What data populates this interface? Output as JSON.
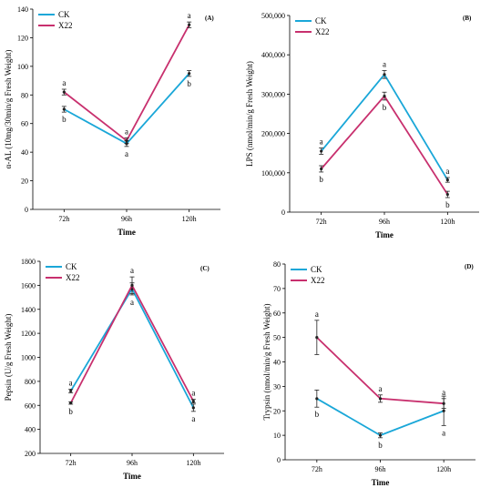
{
  "chart_data": [
    {
      "type": "line",
      "panel": "(A)",
      "categories": [
        "72h",
        "96h",
        "120h"
      ],
      "xlabel": "Time",
      "ylabel": "α-AL (10mg/30min/g Fresh Weight)",
      "ylim": [
        0,
        140
      ],
      "yticks": [
        "0",
        "20",
        "40",
        "60",
        "80",
        "100",
        "120",
        "140"
      ],
      "legend": {
        "position": "top-left",
        "entries": [
          "CK",
          "X22"
        ]
      },
      "series": [
        {
          "name": "CK",
          "color": "#1aa7d8",
          "values": [
            70,
            46,
            95
          ],
          "errors": [
            2,
            2,
            2
          ],
          "letters": [
            "b",
            "a",
            "b"
          ],
          "letter_side": [
            "below",
            "below",
            "below"
          ]
        },
        {
          "name": "X22",
          "color": "#c8306e",
          "values": [
            82,
            48,
            129
          ],
          "errors": [
            2,
            2,
            2
          ],
          "letters": [
            "a",
            "a",
            "a"
          ],
          "letter_side": [
            "above",
            "above",
            "above"
          ]
        }
      ]
    },
    {
      "type": "line",
      "panel": "(B)",
      "categories": [
        "72h",
        "96h",
        "120h"
      ],
      "xlabel": "Time",
      "ylabel": "LPS (nmol/min/g Fresh Weight)",
      "ylim": [
        0,
        500000
      ],
      "yticks": [
        "0",
        "100,000",
        "200,000",
        "300,000",
        "400,000",
        "500,000"
      ],
      "legend": {
        "position": "top-left",
        "entries": [
          "CK",
          "X22"
        ]
      },
      "series": [
        {
          "name": "CK",
          "color": "#1aa7d8",
          "values": [
            155000,
            350000,
            82000
          ],
          "errors": [
            8000,
            10000,
            6000
          ],
          "letters": [
            "a",
            "a",
            "a"
          ],
          "letter_side": [
            "above",
            "above",
            "above"
          ]
        },
        {
          "name": "X22",
          "color": "#c8306e",
          "values": [
            110000,
            295000,
            45000
          ],
          "errors": [
            8000,
            10000,
            8000
          ],
          "letters": [
            "b",
            "b",
            "b"
          ],
          "letter_side": [
            "below",
            "below",
            "below"
          ]
        }
      ]
    },
    {
      "type": "line",
      "panel": "(C)",
      "categories": [
        "72h",
        "96h",
        "120h"
      ],
      "xlabel": "Time",
      "ylabel": "Pepsin (U/g Fresh Weight)",
      "ylim": [
        200,
        1800
      ],
      "yticks": [
        "200",
        "400",
        "600",
        "800",
        "1000",
        "1200",
        "1400",
        "1600",
        "1800"
      ],
      "legend": {
        "position": "top-left",
        "entries": [
          "CK",
          "X22"
        ]
      },
      "series": [
        {
          "name": "CK",
          "color": "#1aa7d8",
          "values": [
            720,
            1570,
            580
          ],
          "errors": [
            15,
            50,
            30
          ],
          "letters": [
            "a",
            "a",
            "a"
          ],
          "letter_side": [
            "above",
            "below",
            "below"
          ]
        },
        {
          "name": "X22",
          "color": "#c8306e",
          "values": [
            620,
            1600,
            635
          ],
          "errors": [
            10,
            70,
            15
          ],
          "letters": [
            "b",
            "a",
            "a"
          ],
          "letter_side": [
            "below",
            "above",
            "above"
          ]
        }
      ]
    },
    {
      "type": "line",
      "panel": "(D)",
      "categories": [
        "72h",
        "96h",
        "120h"
      ],
      "xlabel": "Time",
      "ylabel": "Trypsin (nmol/min/g Fresh Weight)",
      "ylim": [
        0,
        80
      ],
      "yticks": [
        "0",
        "10",
        "20",
        "30",
        "40",
        "50",
        "60",
        "70",
        "80"
      ],
      "legend": {
        "position": "top-left",
        "entries": [
          "CK",
          "X22"
        ]
      },
      "series": [
        {
          "name": "CK",
          "color": "#1aa7d8",
          "values": [
            25,
            10,
            20
          ],
          "errors": [
            3.5,
            1,
            6
          ],
          "letters": [
            "b",
            "b",
            "a"
          ],
          "letter_side": [
            "below",
            "below",
            "below"
          ]
        },
        {
          "name": "X22",
          "color": "#c8306e",
          "values": [
            50,
            25,
            23
          ],
          "errors": [
            7,
            1.5,
            2
          ],
          "letters": [
            "a",
            "a",
            "a"
          ],
          "letter_side": [
            "above",
            "above",
            "above"
          ]
        }
      ]
    }
  ]
}
